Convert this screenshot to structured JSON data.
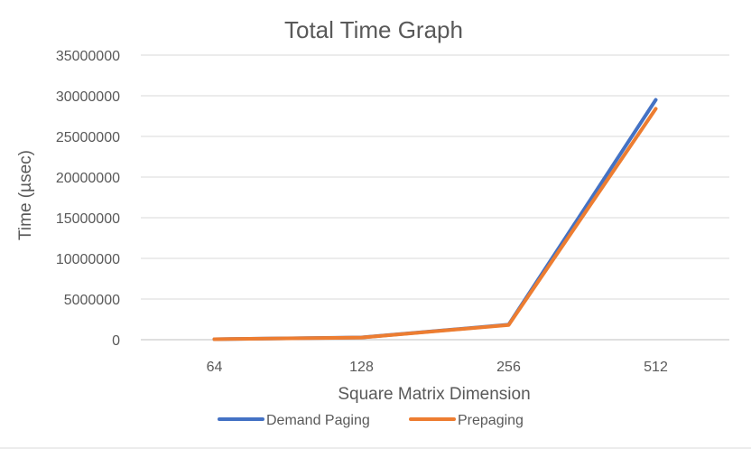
{
  "chart_data": {
    "type": "line",
    "title": "Total Time Graph",
    "xlabel": "Square Matrix Dimension",
    "ylabel": "Time (µsec)",
    "categories": [
      "64",
      "128",
      "256",
      "512"
    ],
    "ylim": [
      0,
      35000000
    ],
    "yticks": [
      "0",
      "5000000",
      "10000000",
      "15000000",
      "20000000",
      "25000000",
      "30000000",
      "35000000"
    ],
    "grid": true,
    "legend_position": "bottom",
    "series": [
      {
        "name": "Demand Paging",
        "color": "#4472C4",
        "values": [
          60000,
          280000,
          1850000,
          29500000
        ]
      },
      {
        "name": "Prepaging",
        "color": "#ED7D31",
        "values": [
          60000,
          270000,
          1800000,
          28400000
        ]
      }
    ]
  }
}
